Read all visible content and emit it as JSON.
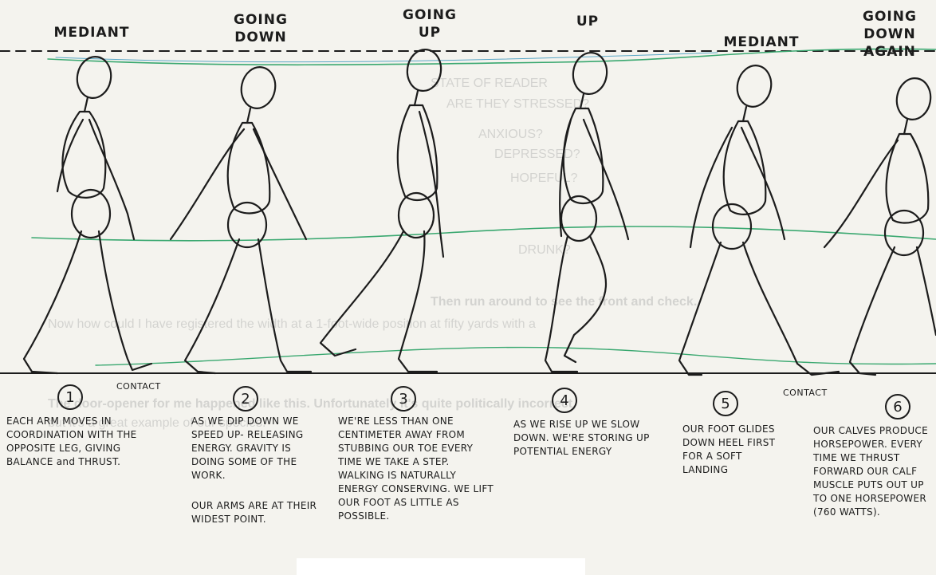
{
  "headers": {
    "h1": "MEDIANT",
    "h2_line1": "GOING",
    "h2_line2": "DOWN",
    "h3_line1": "GOING",
    "h3_line2": "UP",
    "h4": "UP",
    "h5": "MEDIANT",
    "h6_line1": "GOING",
    "h6_line2": "DOWN",
    "h6_line3": "AGAIN"
  },
  "steps": [
    {
      "number": "1",
      "caption": "EACH ARM MOVES IN COORDINATION WITH THE OPPOSITE LEG, GIVING BALANCE and THRUST."
    },
    {
      "number": "2",
      "caption": "AS WE DIP DOWN WE SPEED UP- RELEASING ENERGY. GRAVITY IS DOING SOME OF THE WORK.",
      "caption_extra": "OUR ARMS ARE AT THEIR WIDEST POINT."
    },
    {
      "number": "3",
      "caption": "WE'RE LESS THAN ONE CENTIMETER AWAY FROM STUBBING OUR TOE EVERY TIME WE TAKE A STEP. WALKING IS NATURALLY ENERGY CONSERVING. WE LIFT OUR FOOT AS LITTLE AS POSSIBLE."
    },
    {
      "number": "4",
      "caption": "AS WE RISE UP WE SLOW DOWN. WE'RE STORING UP POTENTIAL ENERGY"
    },
    {
      "number": "5",
      "caption": "OUR FOOT GLIDES DOWN HEEL FIRST FOR A SOFT LANDING"
    },
    {
      "number": "6",
      "caption": "OUR CALVES PRODUCE HORSEPOWER. EVERY TIME WE THRUST FORWARD OUR CALF MUSCLE PUTS OUT UP TO ONE HORSEPOWER (760 WATTS)."
    }
  ],
  "contact_labels": {
    "left": "CONTACT",
    "right": "CONTACT"
  },
  "bleed_through": {
    "l1": "STATE OF READER",
    "l2": "ARE THEY STRESSED?",
    "l3": "ANXIOUS?",
    "l4": "DEPRESSED?",
    "l5": "HOPEFUL?",
    "l6": "DRUNK?",
    "l7": "Then run around to see the front and check.",
    "l8": "Now how could I have registered the width at a 1-foot-wide position at fifty yards with a",
    "l9": "The door-opener for me happened like this. Unfortunately it's quite politically incorrect,",
    "l10": "but it's a great example of our species."
  },
  "colors": {
    "paper": "#f4f3ee",
    "ink": "#1c1c1c",
    "guide_green": "#3aa870",
    "guide_blue": "#5aa7c6"
  }
}
